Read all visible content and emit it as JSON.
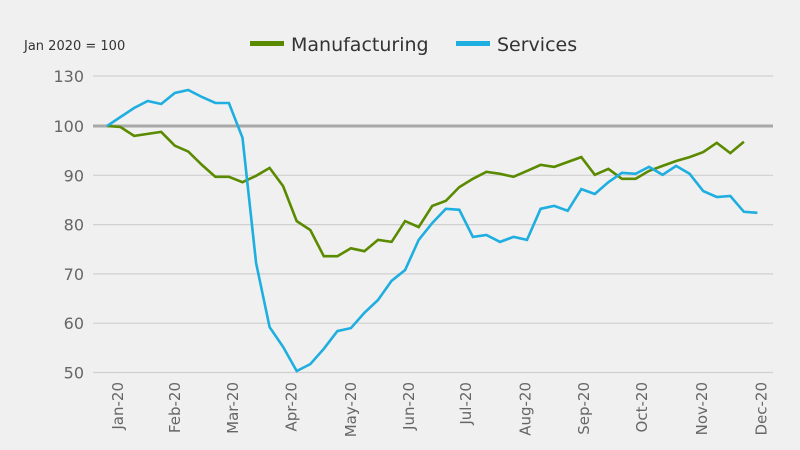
{
  "chart_data": {
    "type": "line",
    "title": "",
    "note": "Jan 2020 = 100",
    "xlabel": "",
    "ylabel": "",
    "ylim": [
      50,
      130
    ],
    "y_ticks": [
      50,
      60,
      70,
      80,
      90,
      100,
      130
    ],
    "y_axis_break": "between 100 and 130 (compressed)",
    "reference_line": 100,
    "grid": true,
    "legend_position": "top-center",
    "x_tick_labels": [
      "Jan-20",
      "Feb-20",
      "Mar-20",
      "Apr-20",
      "May-20",
      "Jun-20",
      "Jul-20",
      "Aug-20",
      "Sep-20",
      "Oct-20",
      "Nov-20",
      "Dec-20"
    ],
    "x_frequency": "weekly",
    "x_ticks_week_index": [
      0.8,
      5,
      9.3,
      13.6,
      18,
      22.3,
      26.5,
      30.9,
      35.2,
      39.5,
      43.9,
      48.3
    ],
    "colors": {
      "Manufacturing": "#5a8a00",
      "Services": "#1eaee0",
      "reference": "#a8a8a8",
      "grid": "#d0d0d0"
    },
    "series": [
      {
        "name": "Manufacturing",
        "values": [
          100,
          99.8,
          98.0,
          98.4,
          98.8,
          96.0,
          94.8,
          92.1,
          89.7,
          89.7,
          88.6,
          89.9,
          91.5,
          87.8,
          80.7,
          78.9,
          73.6,
          73.6,
          75.2,
          74.6,
          76.9,
          76.5,
          80.7,
          79.5,
          83.8,
          84.8,
          87.6,
          89.3,
          90.7,
          90.3,
          89.7,
          90.9,
          92.1,
          91.7,
          92.7,
          93.7,
          90.1,
          91.3,
          89.3,
          89.3,
          90.9,
          91.9,
          92.9,
          93.7,
          94.7,
          96.6,
          94.5,
          96.8
        ]
      },
      {
        "name": "Services",
        "values": [
          100,
          105.4,
          110.8,
          115.0,
          113.2,
          119.8,
          121.6,
          117.4,
          113.8,
          113.8,
          97.6,
          72.2,
          59.2,
          55.2,
          50.3,
          51.7,
          54.8,
          58.4,
          59.0,
          62.1,
          64.7,
          68.6,
          70.8,
          76.9,
          80.3,
          83.2,
          83.0,
          77.5,
          77.9,
          76.5,
          77.5,
          76.9,
          83.2,
          83.8,
          82.8,
          87.2,
          86.2,
          88.6,
          90.5,
          90.3,
          91.7,
          90.1,
          91.9,
          90.3,
          86.8,
          85.6,
          85.8,
          82.6,
          82.4
        ]
      }
    ]
  }
}
